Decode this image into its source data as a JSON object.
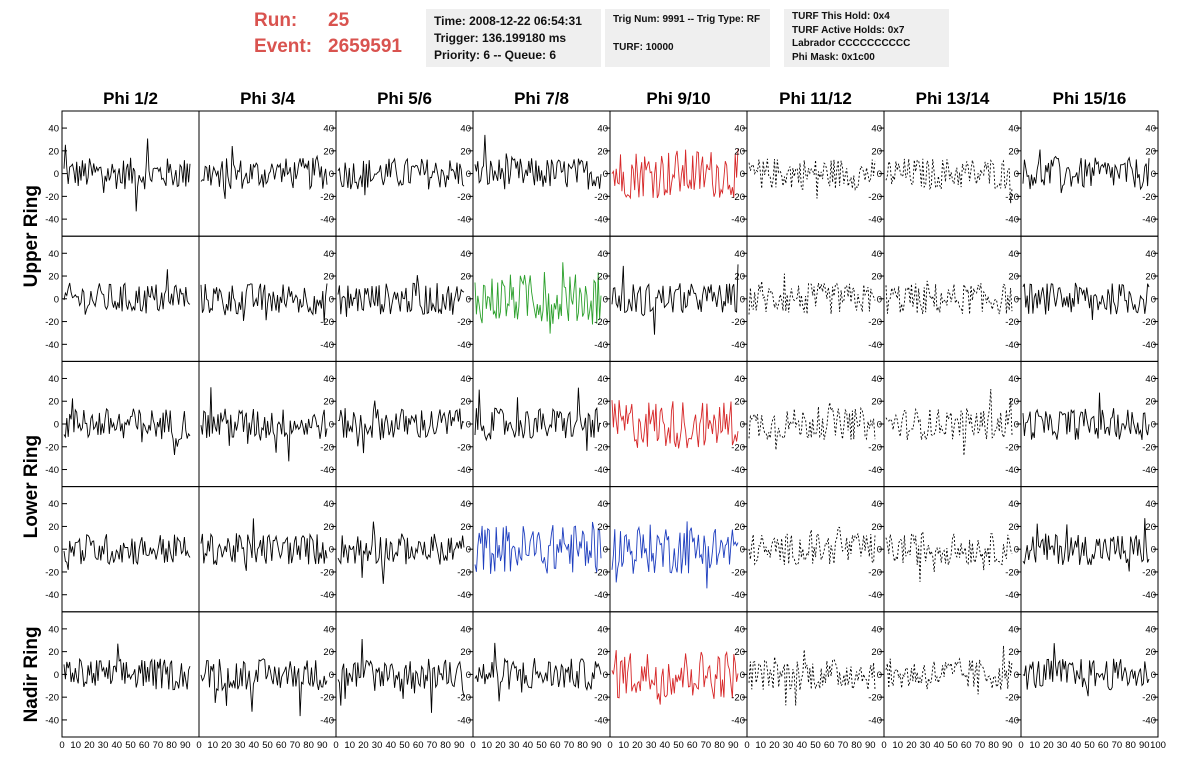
{
  "header": {
    "run_label": "Run:",
    "run_value": "25",
    "event_label": "Event:",
    "event_value": "2659591",
    "accent_color": "#d9534f",
    "time_box": [
      "Time: 2008-12-22 06:54:31",
      "Trigger: 136.199180 ms",
      "Priority: 6 -- Queue: 6"
    ],
    "trig_box": [
      "Trig Num: 9991 -- Trig Type: RF",
      "",
      "TURF: 10000"
    ],
    "turf_box": [
      "TURF This Hold: 0x4",
      "TURF Active Holds: 0x7",
      "Labrador CCCCCCCCCC",
      "Phi Mask: 0x1c00"
    ]
  },
  "chart_data": {
    "type": "line",
    "columns": [
      "Phi 1/2",
      "Phi 3/4",
      "Phi 5/6",
      "Phi 7/8",
      "Phi 9/10",
      "Phi 11/12",
      "Phi 13/14",
      "Phi 15/16"
    ],
    "rows": [
      "Upper Ring",
      "Upper Ring",
      "Lower Ring",
      "Lower Ring",
      "Nadir Ring"
    ],
    "row_labels": [
      "Upper Ring",
      "Lower Ring",
      "Nadir Ring"
    ],
    "x_ticks": [
      "0",
      "10",
      "20",
      "30",
      "40",
      "50",
      "60",
      "70",
      "80",
      "90",
      "100"
    ],
    "y_ticks": [
      "40",
      "20",
      "0",
      "-20",
      "-40"
    ],
    "xlim": [
      0,
      100
    ],
    "ylim": [
      -55,
      55
    ],
    "sample_count": 90,
    "highlight": [
      {
        "row": 0,
        "col": 4,
        "color": "#d62728"
      },
      {
        "row": 1,
        "col": 3,
        "color": "#2ca02c"
      },
      {
        "row": 2,
        "col": 4,
        "color": "#d62728"
      },
      {
        "row": 3,
        "col": 3,
        "color": "#1f3fbf"
      },
      {
        "row": 3,
        "col": 4,
        "color": "#1f3fbf"
      },
      {
        "row": 4,
        "col": 4,
        "color": "#d62728"
      }
    ],
    "dashed_columns": [
      5,
      6
    ],
    "default_color": "#000000"
  }
}
